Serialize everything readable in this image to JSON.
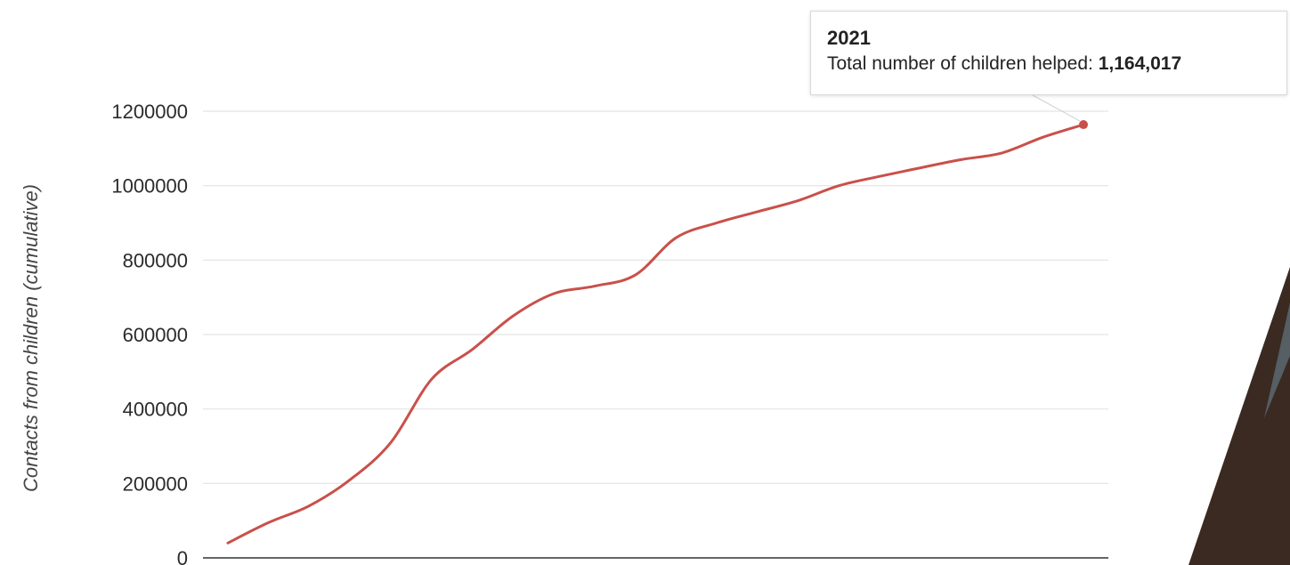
{
  "colors": {
    "line": "#c9504a",
    "grid": "#e3e3e3",
    "axis": "#333333",
    "text": "#2b2b2b",
    "photo_dark": "#3a2a22"
  },
  "tooltip": {
    "year": "2021",
    "label": "Total number of children helped:",
    "value": "1,164,017"
  },
  "chart_data": {
    "type": "line",
    "title": "",
    "xlabel": "",
    "ylabel": "Contacts from children (cumulative)",
    "ylim": [
      0,
      1200000
    ],
    "yticks": [
      0,
      200000,
      400000,
      600000,
      800000,
      1000000,
      1200000
    ],
    "ytick_labels": [
      "0",
      "200000",
      "400000",
      "600000",
      "800000",
      "1000000",
      "1200000"
    ],
    "grid": true,
    "legend": "none",
    "series": [
      {
        "values": [
          40000,
          95000,
          140000,
          210000,
          310000,
          480000,
          560000,
          650000,
          710000,
          730000,
          760000,
          860000,
          900000,
          930000,
          960000,
          1000000,
          1025000,
          1048000,
          1070000,
          1088000,
          1130000,
          1164017
        ]
      }
    ],
    "highlight": {
      "label": "2021",
      "value": 1164017
    }
  }
}
